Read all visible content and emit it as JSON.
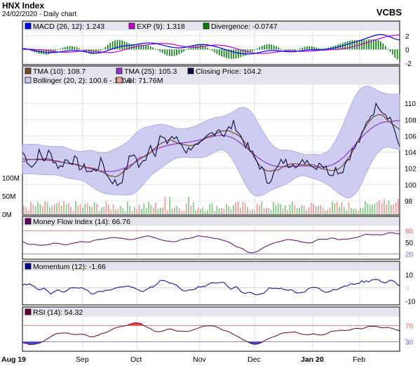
{
  "header": {
    "title": "HNX Index",
    "subtitle": "24/02/2020 - Daily chart",
    "brand": "VCBS"
  },
  "colors": {
    "panel_bg": "#ffffff",
    "legend_bg": "#e4e4ec",
    "grid": "#c8c8d8",
    "macd": "#0000ff",
    "exp": "#cc00cc",
    "divergence": "#008000",
    "tma10": "#7a4a2a",
    "tma25": "#9933cc",
    "close": "#0a0a40",
    "bollinger_fill": "#c8c8f0",
    "bollinger_line": "#9999dd",
    "vol_up": "#88cc88",
    "vol_down": "#e8a0a0",
    "mfi": "#660066",
    "momentum": "#000099",
    "rsi": "#660033",
    "overbought_line": "#cc6666",
    "oversold_line": "#6666cc",
    "overbought_fill": "#ee4444",
    "oversold_fill": "#4444cc"
  },
  "chart_data": [
    {
      "type": "line",
      "panel": "macd",
      "legend": [
        {
          "label": "MACD (26, 12): 1.243",
          "color": "#0000ff"
        },
        {
          "label": "EXP (9): 1.318",
          "color": "#cc00cc"
        },
        {
          "label": "Divergence: -0.0747",
          "color": "#008000"
        }
      ],
      "yticks": [
        "2",
        "0",
        "-2"
      ],
      "ylim": [
        -2,
        2.6
      ]
    },
    {
      "type": "line",
      "panel": "price",
      "legend": [
        {
          "label": "TMA (10): 108.7",
          "color": "#7a4a2a"
        },
        {
          "label": "TMA (25): 105.3",
          "color": "#9933cc"
        },
        {
          "label": "Closing Price: 104.2",
          "color": "#0a0a40"
        },
        {
          "label": "Bollinger (20, 2): 100.6 - 111.6",
          "color": "#c8c8f0"
        },
        {
          "label": "Vol: 71.76M",
          "color": "#e8a0a0"
        }
      ],
      "yticks": [
        "110",
        "108",
        "106",
        "104",
        "102",
        "100",
        "98"
      ],
      "ylim": [
        98,
        112
      ],
      "volume_ticks": [
        "100M",
        "50M",
        "0M"
      ],
      "close": [
        104,
        103,
        102,
        104,
        103,
        104,
        103,
        102,
        103,
        103,
        103,
        102,
        102,
        101.5,
        102,
        103,
        101,
        100.5,
        100,
        101,
        103,
        104,
        102,
        103,
        105,
        104,
        106,
        105,
        106,
        105.5,
        105,
        104,
        105,
        104.5,
        105,
        106,
        106.5,
        107,
        106,
        107,
        107.5,
        106,
        105,
        104,
        103,
        102,
        100.5,
        101,
        102,
        103,
        102.5,
        103,
        102,
        103,
        103,
        102,
        103,
        102,
        101.5,
        102,
        101.5,
        103,
        104,
        105,
        106,
        108,
        109,
        110,
        109,
        108.5,
        107,
        104.2
      ]
    },
    {
      "type": "line",
      "panel": "mfi",
      "legend": [
        {
          "label": "Money Flow Index (14): 66.76",
          "color": "#660066"
        }
      ],
      "yticks": [
        "80",
        "50",
        "20"
      ],
      "ylim": [
        10,
        90
      ]
    },
    {
      "type": "line",
      "panel": "momentum",
      "legend": [
        {
          "label": "Momentum (12): -1.66",
          "color": "#000099"
        }
      ],
      "yticks": [
        "10",
        "0",
        "-10"
      ],
      "ylim": [
        -12,
        12
      ]
    },
    {
      "type": "line",
      "panel": "rsi",
      "legend": [
        {
          "label": "RSI (14): 54.32",
          "color": "#660033"
        }
      ],
      "yticks": [
        "70",
        "30"
      ],
      "ylim": [
        10,
        90
      ]
    }
  ],
  "xaxis": {
    "labels": [
      "Aug 19",
      "Sep",
      "Oct",
      "Nov",
      "Dec",
      "Jan 20",
      "Feb"
    ]
  }
}
